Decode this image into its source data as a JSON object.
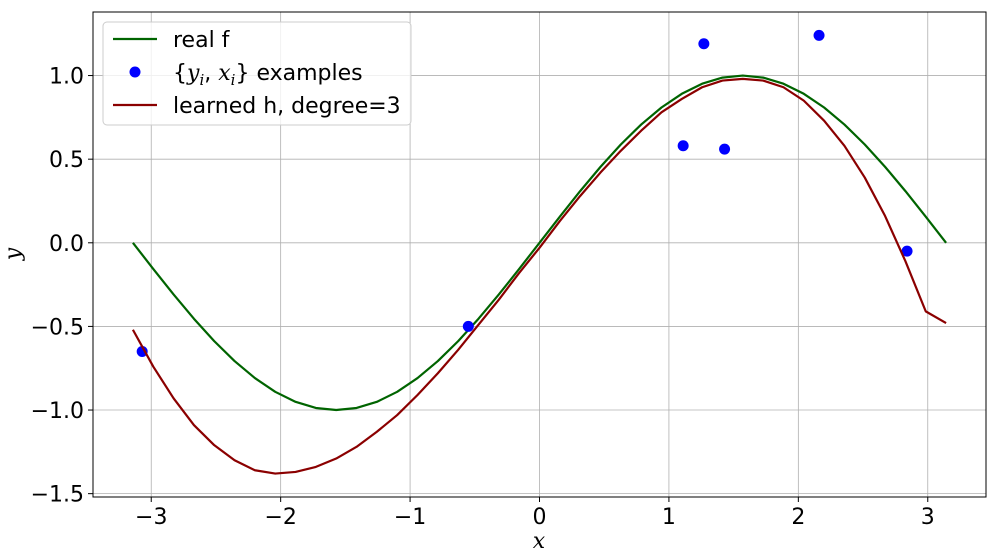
{
  "chart_data": {
    "type": "line",
    "xlabel": "x",
    "ylabel": "y",
    "xlim": [
      -3.45,
      3.45
    ],
    "ylim": [
      -1.52,
      1.38
    ],
    "xticks": [
      -3,
      -2,
      -1,
      0,
      1,
      2,
      3
    ],
    "yticks": [
      -1.5,
      -1.0,
      -0.5,
      0.0,
      0.5,
      1.0
    ],
    "xtick_labels": [
      "−3",
      "−2",
      "−1",
      "0",
      "1",
      "2",
      "3"
    ],
    "ytick_labels": [
      "−1.5",
      "−1.0",
      "−0.5",
      "0.0",
      "0.5",
      "1.0"
    ],
    "grid": true,
    "legend_position": "top-left",
    "series": [
      {
        "name": "real f",
        "kind": "line",
        "color": "#006400",
        "x": [
          -3.1416,
          -2.9845,
          -2.8274,
          -2.6704,
          -2.5133,
          -2.3562,
          -2.1991,
          -2.042,
          -1.885,
          -1.7279,
          -1.5708,
          -1.4137,
          -1.2566,
          -1.0996,
          -0.9425,
          -0.7854,
          -0.6283,
          -0.4712,
          -0.3142,
          -0.1571,
          0.0,
          0.1571,
          0.3142,
          0.4712,
          0.6283,
          0.7854,
          0.9425,
          1.0996,
          1.2566,
          1.4137,
          1.5708,
          1.7279,
          1.885,
          2.042,
          2.1991,
          2.3562,
          2.5133,
          2.6704,
          2.8274,
          2.9845,
          3.1416
        ],
        "y": [
          0.0,
          -0.1564,
          -0.309,
          -0.454,
          -0.5878,
          -0.7071,
          -0.809,
          -0.891,
          -0.9511,
          -0.9877,
          -1.0,
          -0.9877,
          -0.9511,
          -0.891,
          -0.809,
          -0.7071,
          -0.5878,
          -0.454,
          -0.309,
          -0.1564,
          0.0,
          0.1564,
          0.309,
          0.454,
          0.5878,
          0.7071,
          0.809,
          0.891,
          0.9511,
          0.9877,
          1.0,
          0.9877,
          0.9511,
          0.891,
          0.809,
          0.7071,
          0.5878,
          0.454,
          0.309,
          0.1564,
          0.0
        ]
      },
      {
        "name": "{y_i, x_i} examples",
        "kind": "scatter",
        "color": "#0000ff",
        "x": [
          -3.07,
          -0.55,
          1.11,
          1.27,
          1.43,
          2.16,
          2.84
        ],
        "y": [
          -0.65,
          -0.5,
          0.58,
          1.19,
          0.56,
          1.24,
          -0.05
        ]
      },
      {
        "name": "learned h, degree=3",
        "kind": "line",
        "color": "#8b0000",
        "x": [
          -3.1416,
          -2.9845,
          -2.8274,
          -2.6704,
          -2.5133,
          -2.3562,
          -2.1991,
          -2.042,
          -1.885,
          -1.7279,
          -1.5708,
          -1.4137,
          -1.2566,
          -1.0996,
          -0.9425,
          -0.7854,
          -0.6283,
          -0.4712,
          -0.3142,
          -0.1571,
          0.0,
          0.1571,
          0.3142,
          0.4712,
          0.6283,
          0.7854,
          0.9425,
          1.0996,
          1.2566,
          1.4137,
          1.5708,
          1.7279,
          1.885,
          2.042,
          2.1991,
          2.3562,
          2.5133,
          2.6704,
          2.8274,
          2.9845,
          3.1416
        ],
        "y": [
          -0.52,
          -0.74,
          -0.93,
          -1.09,
          -1.21,
          -1.3,
          -1.36,
          -1.38,
          -1.37,
          -1.34,
          -1.29,
          -1.22,
          -1.13,
          -1.03,
          -0.91,
          -0.78,
          -0.64,
          -0.49,
          -0.34,
          -0.18,
          -0.03,
          0.13,
          0.28,
          0.42,
          0.55,
          0.67,
          0.78,
          0.86,
          0.93,
          0.97,
          0.98,
          0.97,
          0.93,
          0.85,
          0.73,
          0.58,
          0.39,
          0.16,
          -0.11,
          -0.41,
          -0.48
        ]
      }
    ]
  }
}
